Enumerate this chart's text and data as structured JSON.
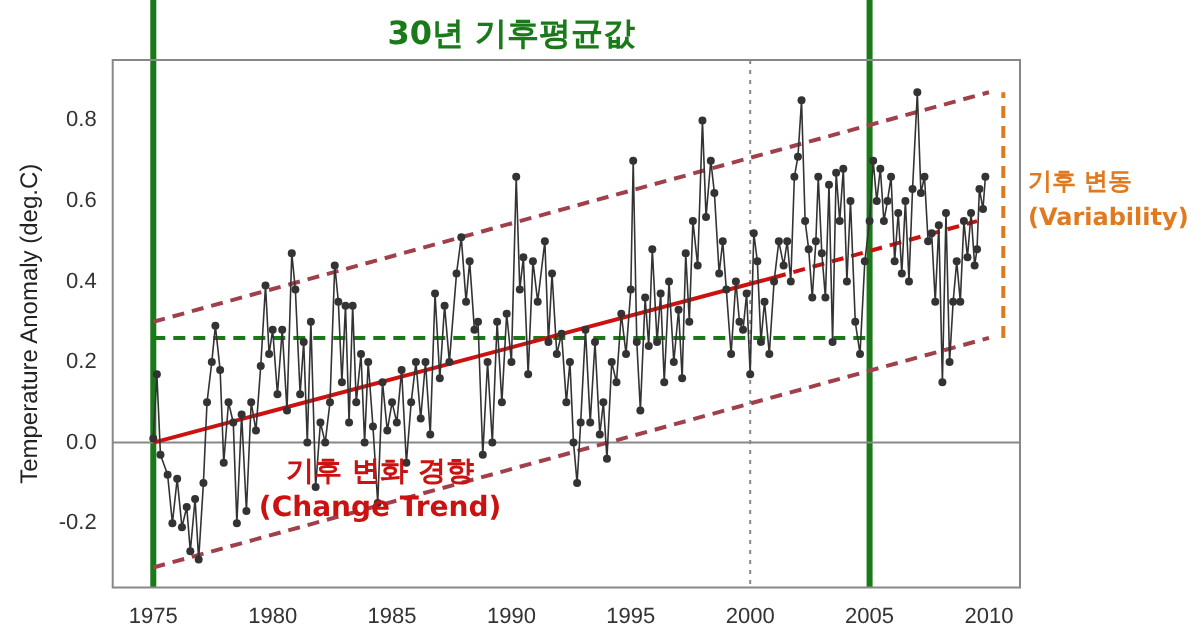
{
  "chart_data": {
    "type": "line",
    "title": "30년 기후평균값",
    "ylabel": "Temperature Anomaly (deg.C)",
    "xlim": [
      1973.3,
      2011.3
    ],
    "xticks": [
      1975,
      1980,
      1985,
      1990,
      1995,
      2000,
      2005,
      2010
    ],
    "ylim": [
      -0.36,
      0.95
    ],
    "yticks": [
      -0.2,
      {
        "value": 0,
        "label": "0.0"
      },
      0.2,
      0.4,
      0.6,
      0.8
    ],
    "grid": false,
    "legend": false,
    "series": [
      {
        "color": "#333333",
        "marker": "circle",
        "line_style": "solid",
        "x": [
          1975.0,
          1975.15,
          1975.3,
          1975.6,
          1975.8,
          1976.0,
          1976.2,
          1976.4,
          1976.55,
          1976.75,
          1976.9,
          1977.1,
          1977.25,
          1977.45,
          1977.6,
          1977.8,
          1977.95,
          1978.15,
          1978.35,
          1978.5,
          1978.7,
          1978.9,
          1979.1,
          1979.3,
          1979.5,
          1979.7,
          1979.85,
          1980.0,
          1980.2,
          1980.4,
          1980.6,
          1980.8,
          1980.95,
          1981.15,
          1981.3,
          1981.45,
          1981.6,
          1981.8,
          1982.0,
          1982.2,
          1982.4,
          1982.6,
          1982.75,
          1982.9,
          1983.05,
          1983.2,
          1983.35,
          1983.5,
          1983.7,
          1983.85,
          1984.0,
          1984.2,
          1984.4,
          1984.6,
          1984.8,
          1985.0,
          1985.2,
          1985.4,
          1985.6,
          1985.8,
          1986.0,
          1986.2,
          1986.4,
          1986.6,
          1986.8,
          1987.0,
          1987.2,
          1987.4,
          1987.7,
          1987.9,
          1988.1,
          1988.25,
          1988.45,
          1988.6,
          1988.8,
          1989.0,
          1989.2,
          1989.4,
          1989.6,
          1989.8,
          1990.0,
          1990.2,
          1990.35,
          1990.5,
          1990.7,
          1990.9,
          1991.1,
          1991.4,
          1991.55,
          1991.7,
          1991.9,
          1992.1,
          1992.3,
          1992.45,
          1992.6,
          1992.75,
          1992.9,
          1993.1,
          1993.3,
          1993.5,
          1993.7,
          1993.85,
          1994.0,
          1994.2,
          1994.4,
          1994.6,
          1994.8,
          1995.0,
          1995.1,
          1995.25,
          1995.4,
          1995.6,
          1995.75,
          1995.9,
          1996.1,
          1996.25,
          1996.4,
          1996.6,
          1996.8,
          1997.0,
          1997.15,
          1997.3,
          1997.45,
          1997.6,
          1997.8,
          1998.0,
          1998.15,
          1998.35,
          1998.5,
          1998.7,
          1998.85,
          1999.0,
          1999.2,
          1999.4,
          1999.55,
          1999.7,
          1999.85,
          2000.0,
          2000.15,
          2000.3,
          2000.45,
          2000.6,
          2000.8,
          2001.0,
          2001.2,
          2001.4,
          2001.55,
          2001.7,
          2001.85,
          2002.0,
          2002.15,
          2002.3,
          2002.45,
          2002.6,
          2002.75,
          2002.85,
          2003.0,
          2003.15,
          2003.3,
          2003.45,
          2003.6,
          2003.75,
          2003.9,
          2004.05,
          2004.2,
          2004.4,
          2004.6,
          2004.8,
          2005.0,
          2005.15,
          2005.3,
          2005.45,
          2005.6,
          2005.75,
          2005.9,
          2006.05,
          2006.2,
          2006.35,
          2006.5,
          2006.65,
          2006.8,
          2007.0,
          2007.15,
          2007.3,
          2007.45,
          2007.6,
          2007.75,
          2007.9,
          2008.05,
          2008.2,
          2008.35,
          2008.5,
          2008.65,
          2008.8,
          2008.95,
          2009.1,
          2009.25,
          2009.4,
          2009.5,
          2009.6,
          2009.75,
          2009.85
        ],
        "values": [
          0.01,
          0.17,
          -0.03,
          -0.08,
          -0.2,
          -0.09,
          -0.21,
          -0.16,
          -0.27,
          -0.14,
          -0.29,
          -0.1,
          0.1,
          0.2,
          0.29,
          0.18,
          -0.05,
          0.1,
          0.05,
          -0.2,
          0.07,
          -0.17,
          0.1,
          0.03,
          0.19,
          0.39,
          0.22,
          0.28,
          0.12,
          0.28,
          0.08,
          0.47,
          0.38,
          0.12,
          0.25,
          0.0,
          0.3,
          -0.11,
          0.05,
          0.0,
          0.1,
          0.44,
          0.35,
          0.15,
          0.34,
          0.05,
          0.34,
          0.1,
          0.22,
          0.0,
          0.2,
          0.04,
          -0.15,
          0.15,
          0.03,
          0.1,
          0.05,
          0.18,
          -0.05,
          0.1,
          0.2,
          0.06,
          0.2,
          0.02,
          0.37,
          0.16,
          0.34,
          0.2,
          0.42,
          0.51,
          0.35,
          0.45,
          0.28,
          0.3,
          -0.03,
          0.2,
          0.0,
          0.3,
          0.1,
          0.32,
          0.2,
          0.66,
          0.38,
          0.46,
          0.17,
          0.45,
          0.35,
          0.5,
          0.25,
          0.42,
          0.22,
          0.27,
          0.1,
          0.2,
          0.0,
          -0.1,
          0.05,
          0.28,
          0.05,
          0.25,
          0.02,
          0.1,
          -0.04,
          0.2,
          0.15,
          0.32,
          0.22,
          0.38,
          0.7,
          0.25,
          0.08,
          0.36,
          0.24,
          0.48,
          0.25,
          0.37,
          0.15,
          0.4,
          0.2,
          0.33,
          0.16,
          0.47,
          0.3,
          0.55,
          0.44,
          0.8,
          0.56,
          0.7,
          0.62,
          0.42,
          0.5,
          0.38,
          0.22,
          0.4,
          0.3,
          0.28,
          0.37,
          0.17,
          0.52,
          0.45,
          0.25,
          0.35,
          0.22,
          0.4,
          0.5,
          0.44,
          0.5,
          0.4,
          0.66,
          0.71,
          0.85,
          0.55,
          0.48,
          0.36,
          0.5,
          0.66,
          0.47,
          0.36,
          0.64,
          0.25,
          0.67,
          0.55,
          0.68,
          0.4,
          0.6,
          0.3,
          0.22,
          0.45,
          0.55,
          0.7,
          0.6,
          0.68,
          0.55,
          0.6,
          0.66,
          0.45,
          0.57,
          0.42,
          0.6,
          0.4,
          0.63,
          0.87,
          0.62,
          0.66,
          0.5,
          0.52,
          0.35,
          0.54,
          0.15,
          0.57,
          0.2,
          0.35,
          0.45,
          0.35,
          0.55,
          0.46,
          0.57,
          0.44,
          0.48,
          0.63,
          0.58,
          0.66
        ]
      },
      {
        "color": "#cc1111",
        "marker": "none",
        "line_style": "solid",
        "x": [
          1975,
          2001
        ],
        "values": [
          0.0,
          0.41
        ]
      },
      {
        "color": "#cc1111",
        "marker": "none",
        "line_style": "dashed",
        "x": [
          2001,
          2009.5
        ],
        "values": [
          0.41,
          0.55
        ]
      },
      {
        "color": "#a0404a",
        "marker": "none",
        "line_style": "dashed",
        "x": [
          1975,
          2010
        ],
        "values": [
          0.3,
          0.87
        ]
      },
      {
        "color": "#a0404a",
        "marker": "none",
        "line_style": "dashed",
        "x": [
          1975,
          2010
        ],
        "values": [
          -0.31,
          0.26
        ]
      },
      {
        "color": "#1a7a1a",
        "marker": "none",
        "line_style": "dashed",
        "x": [
          1975,
          2005
        ],
        "values": [
          0.26,
          0.26
        ]
      },
      {
        "color": "#e07a20",
        "marker": "none",
        "line_style": "dashed",
        "x": [
          2010.6,
          2010.6
        ],
        "values": [
          0.26,
          0.87
        ]
      }
    ],
    "ref_lines": [
      {
        "axis": "x",
        "value": 1975,
        "color": "#1a7a1a",
        "line_style": "solid"
      },
      {
        "axis": "x",
        "value": 2005,
        "color": "#1a7a1a",
        "line_style": "solid"
      },
      {
        "axis": "x",
        "value": 2000,
        "color": "#888888",
        "line_style": "dotted"
      },
      {
        "axis": "y",
        "value": 0,
        "color": "#888888",
        "line_style": "solid"
      }
    ],
    "annotations": [
      {
        "text": "기후 변화 경향\n(Change Trend)",
        "x": 1984.5,
        "y": -0.12
      },
      {
        "text": "기후 변동\n(Variability)",
        "x": 2011,
        "y": 0.6
      }
    ]
  }
}
